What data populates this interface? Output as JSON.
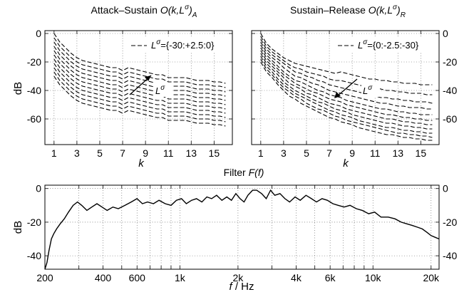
{
  "chart_data": [
    {
      "type": "line",
      "title": "Attack–Sustain O(k,Lσ)A",
      "title_parts": {
        "pre": "Attack–Sustain ",
        "main": "O(k,L",
        "sup": "σ",
        "post": ")",
        "sub": "A"
      },
      "xlabel": "k",
      "ylabel": "dB",
      "xlim": [
        0.2,
        16.6
      ],
      "ylim": [
        -78,
        2
      ],
      "xticks": [
        1,
        3,
        5,
        7,
        9,
        11,
        13,
        15
      ],
      "yticks": [
        0,
        -20,
        -40,
        -60
      ],
      "grid": true,
      "legend": {
        "position": "top-right",
        "text": "Lσ={-30:+2.5:0}",
        "pre": "L",
        "sup": "σ",
        "post": "={-30:+2.5:0}"
      },
      "annotation": {
        "text": "Lσ",
        "arrow_direction": "up-right"
      },
      "x": [
        1,
        1.5,
        2,
        2.5,
        3,
        3.5,
        4,
        4.5,
        5,
        5.5,
        6,
        6.5,
        7,
        7.5,
        8,
        8.5,
        9,
        9.5,
        10,
        10.5,
        11,
        11.5,
        12,
        12.5,
        13,
        13.5,
        14,
        14.5,
        15,
        15.5,
        16
      ],
      "series": [
        {
          "values": [
            0,
            -6,
            -10,
            -14,
            -17,
            -19,
            -20,
            -21,
            -22,
            -23,
            -24,
            -24,
            -26,
            -24,
            -25,
            -26,
            -27,
            -28,
            -29,
            -29,
            -31,
            -31,
            -31,
            -31,
            -32,
            -33,
            -33,
            -33,
            -34,
            -34,
            -35
          ]
        },
        {
          "values": [
            -3,
            -9,
            -13,
            -17,
            -20,
            -22,
            -23,
            -24,
            -25,
            -26,
            -27,
            -27,
            -29,
            -27,
            -28,
            -29,
            -30,
            -31,
            -32,
            -32,
            -34,
            -34,
            -34,
            -34,
            -35,
            -36,
            -36,
            -36,
            -37,
            -37,
            -38
          ]
        },
        {
          "values": [
            -6,
            -12,
            -16,
            -20,
            -23,
            -25,
            -26,
            -27,
            -28,
            -29,
            -30,
            -30,
            -32,
            -30,
            -31,
            -32,
            -33,
            -34,
            -35,
            -35,
            -37,
            -37,
            -37,
            -37,
            -38,
            -39,
            -39,
            -39,
            -40,
            -40,
            -41
          ]
        },
        {
          "values": [
            -9,
            -15,
            -19,
            -23,
            -26,
            -28,
            -29,
            -30,
            -31,
            -32,
            -33,
            -33,
            -35,
            -33,
            -34,
            -35,
            -36,
            -37,
            -38,
            -38,
            -40,
            -40,
            -40,
            -40,
            -41,
            -42,
            -42,
            -42,
            -43,
            -43,
            -44
          ]
        },
        {
          "values": [
            -12,
            -18,
            -22,
            -26,
            -29,
            -31,
            -32,
            -33,
            -34,
            -35,
            -36,
            -36,
            -38,
            -36,
            -37,
            -38,
            -39,
            -40,
            -41,
            -41,
            -43,
            -43,
            -43,
            -43,
            -44,
            -45,
            -45,
            -45,
            -46,
            -46,
            -47
          ]
        },
        {
          "values": [
            -15,
            -21,
            -25,
            -29,
            -32,
            -34,
            -35,
            -36,
            -37,
            -38,
            -39,
            -39,
            -41,
            -39,
            -40,
            -41,
            -42,
            -43,
            -44,
            -44,
            -46,
            -46,
            -46,
            -46,
            -47,
            -48,
            -48,
            -48,
            -49,
            -49,
            -50
          ]
        },
        {
          "values": [
            -18,
            -24,
            -28,
            -32,
            -35,
            -37,
            -38,
            -39,
            -40,
            -41,
            -42,
            -42,
            -44,
            -42,
            -43,
            -44,
            -45,
            -46,
            -47,
            -47,
            -49,
            -49,
            -49,
            -49,
            -50,
            -51,
            -51,
            -51,
            -52,
            -52,
            -53
          ]
        },
        {
          "values": [
            -21,
            -27,
            -31,
            -35,
            -38,
            -40,
            -41,
            -42,
            -43,
            -44,
            -45,
            -45,
            -47,
            -45,
            -46,
            -47,
            -48,
            -49,
            -50,
            -50,
            -52,
            -52,
            -52,
            -52,
            -53,
            -54,
            -54,
            -54,
            -55,
            -55,
            -56
          ]
        },
        {
          "values": [
            -24,
            -30,
            -34,
            -38,
            -41,
            -43,
            -44,
            -45,
            -46,
            -47,
            -48,
            -48,
            -50,
            -48,
            -49,
            -50,
            -51,
            -52,
            -53,
            -53,
            -55,
            -55,
            -55,
            -55,
            -56,
            -57,
            -57,
            -57,
            -58,
            -58,
            -59
          ]
        },
        {
          "values": [
            -27,
            -33,
            -37,
            -41,
            -44,
            -46,
            -47,
            -48,
            -49,
            -50,
            -51,
            -51,
            -53,
            -51,
            -52,
            -53,
            -54,
            -55,
            -56,
            -56,
            -58,
            -58,
            -58,
            -58,
            -59,
            -60,
            -60,
            -60,
            -61,
            -61,
            -62
          ]
        },
        {
          "values": [
            -30,
            -36,
            -40,
            -44,
            -47,
            -49,
            -50,
            -51,
            -52,
            -53,
            -54,
            -54,
            -56,
            -54,
            -55,
            -56,
            -57,
            -58,
            -59,
            -59,
            -61,
            -61,
            -61,
            -61,
            -62,
            -63,
            -63,
            -63,
            -64,
            -64,
            -65
          ]
        }
      ]
    },
    {
      "type": "line",
      "title": "Sustain–Release O(k,Lσ)R",
      "title_parts": {
        "pre": "Sustain–Release ",
        "main": "O(k,L",
        "sup": "σ",
        "post": ")",
        "sub": "R"
      },
      "xlabel": "k",
      "ylabel": "",
      "xlim": [
        0.2,
        16.6
      ],
      "ylim": [
        -78,
        2
      ],
      "xticks": [
        1,
        3,
        5,
        7,
        9,
        11,
        13,
        15
      ],
      "yticks": [
        0,
        -20,
        -40,
        -60
      ],
      "grid": true,
      "legend": {
        "position": "top-right",
        "text": "Lσ={0:-2.5:-30}",
        "pre": "L",
        "sup": "σ",
        "post": "={0:-2.5:-30}"
      },
      "annotation": {
        "text": "Lσ",
        "arrow_direction": "down-left"
      },
      "x": [
        1,
        1.5,
        2,
        2.5,
        3,
        3.5,
        4,
        4.5,
        5,
        5.5,
        6,
        6.5,
        7,
        7.5,
        8,
        8.5,
        9,
        9.5,
        10,
        10.5,
        11,
        11.5,
        12,
        12.5,
        13,
        13.5,
        14,
        14.5,
        15,
        15.5,
        16
      ],
      "series": [
        {
          "values": [
            0,
            -7,
            -11,
            -14,
            -17,
            -19,
            -21,
            -22,
            -23,
            -24,
            -25,
            -26,
            -27,
            -28,
            -27,
            -28,
            -29,
            -30,
            -31,
            -32,
            -32,
            -33,
            -33,
            -34,
            -34,
            -35,
            -35,
            -35,
            -36,
            -36,
            -36
          ]
        },
        {
          "values": [
            -2,
            -9,
            -13,
            -16,
            -19,
            -22,
            -24,
            -25,
            -27,
            -28,
            -29,
            -30,
            -32,
            -33,
            -33,
            -34,
            -35,
            -36,
            -37,
            -38,
            -38,
            -39,
            -40,
            -40,
            -41,
            -41,
            -42,
            -42,
            -42,
            -43,
            -43
          ]
        },
        {
          "values": [
            -4,
            -11,
            -15,
            -18,
            -21,
            -24,
            -27,
            -28,
            -30,
            -31,
            -33,
            -34,
            -36,
            -37,
            -38,
            -39,
            -40,
            -41,
            -42,
            -43,
            -44,
            -45,
            -45,
            -46,
            -46,
            -47,
            -47,
            -48,
            -48,
            -48,
            -49
          ]
        },
        {
          "values": [
            -6,
            -13,
            -17,
            -20,
            -24,
            -27,
            -30,
            -31,
            -33,
            -35,
            -36,
            -38,
            -40,
            -41,
            -42,
            -43,
            -44,
            -45,
            -46,
            -47,
            -48,
            -49,
            -49,
            -50,
            -51,
            -51,
            -52,
            -52,
            -52,
            -53,
            -53
          ]
        },
        {
          "values": [
            -8,
            -15,
            -19,
            -23,
            -27,
            -30,
            -33,
            -34,
            -36,
            -38,
            -40,
            -41,
            -43,
            -44,
            -45,
            -47,
            -48,
            -49,
            -50,
            -51,
            -52,
            -53,
            -53,
            -54,
            -55,
            -55,
            -56,
            -56,
            -57,
            -57,
            -57
          ]
        },
        {
          "values": [
            -10,
            -17,
            -21,
            -25,
            -29,
            -32,
            -35,
            -37,
            -39,
            -41,
            -42,
            -44,
            -46,
            -47,
            -48,
            -50,
            -51,
            -52,
            -53,
            -54,
            -55,
            -56,
            -57,
            -57,
            -58,
            -59,
            -59,
            -60,
            -60,
            -61,
            -61
          ]
        },
        {
          "values": [
            -12,
            -19,
            -23,
            -27,
            -31,
            -35,
            -37,
            -39,
            -42,
            -43,
            -45,
            -47,
            -49,
            -50,
            -51,
            -53,
            -54,
            -55,
            -56,
            -57,
            -58,
            -59,
            -60,
            -60,
            -61,
            -62,
            -62,
            -63,
            -63,
            -64,
            -64
          ]
        },
        {
          "values": [
            -14,
            -21,
            -25,
            -29,
            -34,
            -37,
            -40,
            -42,
            -44,
            -46,
            -48,
            -49,
            -51,
            -53,
            -54,
            -55,
            -57,
            -58,
            -59,
            -60,
            -61,
            -62,
            -63,
            -63,
            -64,
            -65,
            -65,
            -66,
            -66,
            -67,
            -67
          ]
        },
        {
          "values": [
            -16,
            -23,
            -27,
            -32,
            -36,
            -39,
            -42,
            -44,
            -46,
            -48,
            -50,
            -52,
            -54,
            -55,
            -57,
            -58,
            -59,
            -61,
            -62,
            -63,
            -64,
            -65,
            -66,
            -66,
            -67,
            -68,
            -68,
            -69,
            -69,
            -70,
            -70
          ]
        },
        {
          "values": [
            -18,
            -25,
            -29,
            -34,
            -38,
            -41,
            -44,
            -46,
            -49,
            -51,
            -53,
            -54,
            -56,
            -58,
            -59,
            -61,
            -62,
            -63,
            -64,
            -65,
            -66,
            -67,
            -68,
            -69,
            -70,
            -70,
            -71,
            -71,
            -72,
            -72,
            -73
          ]
        },
        {
          "values": [
            -20,
            -27,
            -31,
            -36,
            -40,
            -44,
            -46,
            -49,
            -51,
            -53,
            -55,
            -57,
            -59,
            -60,
            -62,
            -63,
            -64,
            -66,
            -67,
            -68,
            -69,
            -70,
            -71,
            -71,
            -72,
            -73,
            -73,
            -74,
            -74,
            -75,
            -75
          ]
        }
      ]
    },
    {
      "type": "line",
      "title": "Filter F(f)",
      "title_parts": {
        "pre": "Filter ",
        "main": "F(f)"
      },
      "xlabel": "f / Hz",
      "xlabel_parts": {
        "italic": "f",
        "plain": " / Hz"
      },
      "ylabel": "dB",
      "x_scale": "log",
      "xlim": [
        200,
        22000
      ],
      "ylim": [
        -48,
        2
      ],
      "xticks": [
        200,
        400,
        600,
        1000,
        2000,
        4000,
        6000,
        10000,
        20000
      ],
      "xtick_labels": [
        "200",
        "400",
        "600",
        "1k",
        "2k",
        "4k",
        "6k",
        "10k",
        "20k"
      ],
      "yticks": [
        0,
        -20,
        -40
      ],
      "grid": true,
      "series": [
        {
          "x": [
            200,
            205,
            210,
            216,
            222,
            230,
            240,
            252,
            265,
            280,
            295,
            310,
            330,
            350,
            372,
            395,
            420,
            450,
            480,
            520,
            560,
            600,
            640,
            680,
            730,
            780,
            840,
            900,
            960,
            1020,
            1080,
            1150,
            1220,
            1300,
            1380,
            1460,
            1550,
            1650,
            1750,
            1850,
            1950,
            2050,
            2150,
            2250,
            2380,
            2500,
            2650,
            2800,
            2950,
            3100,
            3300,
            3500,
            3700,
            3950,
            4200,
            4500,
            4800,
            5100,
            5450,
            5800,
            6200,
            6600,
            7100,
            7600,
            8200,
            8800,
            9500,
            10200,
            11000,
            12000,
            13000,
            14000,
            15000,
            16000,
            17000,
            18000,
            19000,
            20000,
            21000,
            22000
          ],
          "values": [
            -48,
            -44,
            -37,
            -30,
            -27,
            -24,
            -21,
            -18,
            -14,
            -10,
            -8,
            -10,
            -13,
            -11,
            -9,
            -11,
            -13,
            -11,
            -12,
            -10,
            -8,
            -6,
            -9,
            -8,
            -9,
            -7,
            -9,
            -10,
            -7,
            -6,
            -9,
            -7,
            -6,
            -8,
            -5,
            -6,
            -4,
            -7,
            -5,
            -7,
            -3,
            -6,
            -8,
            -4,
            -1,
            -1,
            -3,
            -6,
            -1,
            -4,
            -3,
            -6,
            -8,
            -5,
            -7,
            -4,
            -6,
            -8,
            -6,
            -7,
            -9,
            -10,
            -11,
            -10,
            -12,
            -13,
            -15,
            -14,
            -17,
            -17,
            -18,
            -20,
            -21,
            -22,
            -23,
            -24,
            -26,
            -28,
            -29,
            -30
          ]
        }
      ]
    }
  ]
}
